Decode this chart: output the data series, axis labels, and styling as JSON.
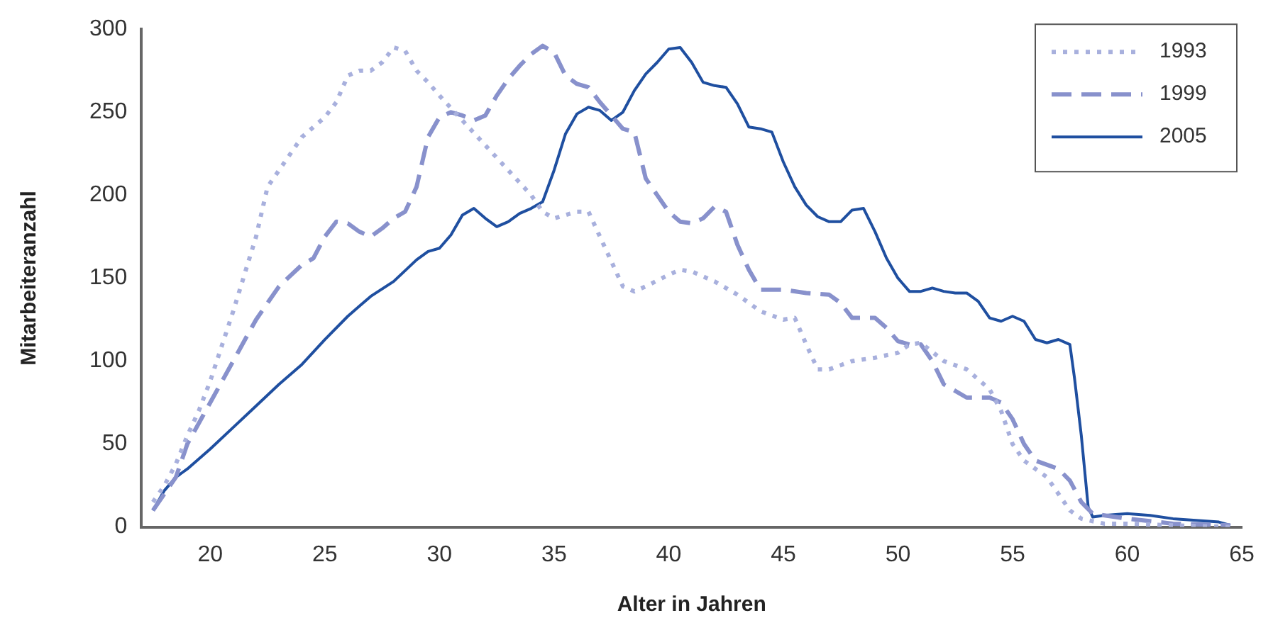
{
  "chart_data": {
    "type": "line",
    "xlabel": "Alter in Jahren",
    "ylabel": "Mitarbeiteranzahl",
    "xlim": [
      17,
      65
    ],
    "xticks": [
      20,
      25,
      30,
      35,
      40,
      45,
      50,
      55,
      60,
      65
    ],
    "ylim": [
      0,
      300
    ],
    "yticks": [
      0,
      50,
      100,
      150,
      200,
      250,
      300
    ],
    "grid": false,
    "legend": "top right",
    "marker": "none",
    "series": [
      {
        "name": "1993",
        "color": "#a8b0dd",
        "line_style": "dotted",
        "x": [
          17.5,
          18,
          18.5,
          19,
          19.5,
          20,
          21,
          22,
          22.5,
          23,
          24,
          25,
          25.5,
          26,
          26.5,
          27,
          27.5,
          28,
          28.5,
          29,
          29.5,
          30,
          31,
          32,
          33,
          34,
          34.5,
          35,
          36,
          36.5,
          37,
          37.5,
          38,
          38.5,
          39,
          40,
          40.5,
          41,
          42,
          43,
          44,
          45,
          45.5,
          46,
          46.5,
          47,
          48,
          49,
          50,
          50.5,
          51,
          52,
          53,
          54,
          54.5,
          55,
          55.5,
          56,
          56.5,
          57,
          57.5,
          58,
          59,
          60,
          62,
          64.5
        ],
        "values": [
          15,
          25,
          38,
          55,
          70,
          88,
          130,
          175,
          205,
          215,
          235,
          247,
          256,
          272,
          275,
          275,
          280,
          289,
          287,
          275,
          268,
          260,
          245,
          230,
          215,
          200,
          190,
          186,
          190,
          190,
          175,
          160,
          145,
          142,
          145,
          152,
          155,
          154,
          148,
          140,
          130,
          125,
          126,
          110,
          95,
          95,
          100,
          102,
          105,
          110,
          111,
          100,
          95,
          83,
          70,
          50,
          40,
          35,
          30,
          20,
          10,
          5,
          2,
          2,
          1,
          0
        ]
      },
      {
        "name": "1999",
        "color": "#8891cc",
        "line_style": "dashed",
        "x": [
          17.5,
          18,
          18.5,
          19,
          20,
          21,
          22,
          23,
          24,
          24.5,
          25,
          25.5,
          26,
          26.5,
          27,
          27.5,
          28,
          28.5,
          29,
          29.5,
          30,
          30.5,
          31,
          31.5,
          32,
          32.5,
          33,
          33.5,
          34,
          34.5,
          35,
          35.5,
          36,
          36.5,
          37,
          37.5,
          38,
          38.5,
          39,
          39.5,
          40,
          40.5,
          41,
          41.5,
          42,
          42.5,
          43,
          43.5,
          44,
          45,
          46,
          47,
          47.5,
          48,
          49,
          49.5,
          50,
          50.5,
          51,
          51.5,
          52,
          53,
          54,
          54.5,
          55,
          55.5,
          56,
          57,
          57.5,
          58,
          58.5,
          60,
          62,
          64.5
        ],
        "values": [
          10,
          20,
          30,
          50,
          75,
          100,
          125,
          145,
          158,
          162,
          175,
          184,
          183,
          178,
          175,
          180,
          186,
          190,
          205,
          235,
          247,
          250,
          248,
          245,
          248,
          260,
          270,
          278,
          285,
          290,
          286,
          272,
          267,
          265,
          256,
          248,
          240,
          238,
          210,
          200,
          190,
          184,
          183,
          186,
          193,
          190,
          170,
          155,
          143,
          143,
          141,
          140,
          135,
          126,
          126,
          120,
          112,
          110,
          110,
          100,
          86,
          78,
          78,
          75,
          65,
          50,
          40,
          35,
          28,
          15,
          8,
          5,
          2,
          1
        ]
      },
      {
        "name": "2005",
        "color": "#1f4fa0",
        "line_style": "solid",
        "x": [
          17.5,
          18,
          18.5,
          19,
          20,
          21,
          22,
          23,
          24,
          25,
          26,
          27,
          28,
          29,
          29.5,
          30,
          30.5,
          31,
          31.5,
          32,
          32.5,
          33,
          33.5,
          34,
          34.5,
          35,
          35.5,
          36,
          36.5,
          37,
          37.5,
          38,
          38.5,
          39,
          39.5,
          40,
          40.5,
          41,
          41.5,
          42,
          42.5,
          43,
          43.5,
          44,
          44.5,
          45,
          45.5,
          46,
          46.5,
          47,
          47.5,
          48,
          48.5,
          49,
          49.5,
          50,
          50.5,
          51,
          51.5,
          52,
          52.5,
          53,
          53.5,
          54,
          54.5,
          55,
          55.5,
          56,
          56.5,
          57,
          57.5,
          57.7,
          58,
          58.3,
          58.5,
          59,
          60,
          61,
          62,
          63,
          64,
          64.5
        ],
        "values": [
          10,
          22,
          30,
          35,
          47,
          60,
          73,
          86,
          98,
          113,
          127,
          139,
          148,
          161,
          166,
          168,
          176,
          188,
          192,
          186,
          181,
          184,
          189,
          192,
          196,
          215,
          237,
          249,
          253,
          251,
          245,
          250,
          263,
          273,
          280,
          288,
          289,
          280,
          268,
          266,
          265,
          255,
          241,
          240,
          238,
          220,
          205,
          194,
          187,
          184,
          184,
          191,
          192,
          178,
          162,
          150,
          142,
          142,
          144,
          142,
          141,
          141,
          136,
          126,
          124,
          127,
          124,
          113,
          111,
          113,
          110,
          90,
          55,
          12,
          6,
          7,
          8,
          7,
          5,
          4,
          3,
          1
        ]
      }
    ]
  }
}
